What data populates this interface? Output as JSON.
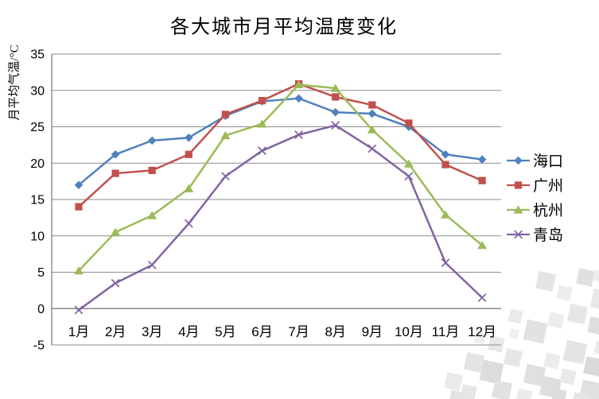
{
  "chart_data": {
    "type": "line",
    "title": "各大城市月平均温度变化",
    "ylabel": "月平均气温/°C",
    "xlabel": "",
    "categories": [
      "1月",
      "2月",
      "3月",
      "4月",
      "5月",
      "6月",
      "7月",
      "8月",
      "9月",
      "10月",
      "11月",
      "12月"
    ],
    "series": [
      {
        "name": "海口",
        "marker": "diamond",
        "color": "#4F81BD",
        "values": [
          17,
          21.2,
          23.1,
          23.5,
          26.5,
          28.5,
          28.9,
          27,
          26.8,
          25,
          21.2,
          20.5
        ]
      },
      {
        "name": "广州",
        "marker": "square",
        "color": "#C0504D",
        "values": [
          14,
          18.6,
          19,
          21.2,
          26.7,
          28.6,
          30.9,
          29.1,
          28,
          25.5,
          19.8,
          17.6
        ]
      },
      {
        "name": "杭州",
        "marker": "triangle",
        "color": "#9BBB59",
        "values": [
          5.2,
          10.5,
          12.8,
          16.5,
          23.8,
          25.4,
          30.8,
          30.3,
          24.6,
          19.9,
          12.9,
          8.7
        ]
      },
      {
        "name": "青岛",
        "marker": "x",
        "color": "#8064A2",
        "values": [
          -0.2,
          3.5,
          6,
          11.7,
          18.2,
          21.7,
          23.9,
          25.2,
          22,
          18.2,
          6.3,
          1.5
        ]
      }
    ],
    "ylim": [
      -5,
      35
    ],
    "yticks": [
      -5,
      0,
      5,
      10,
      15,
      20,
      25,
      30,
      35
    ],
    "grid": true,
    "legend_position": "right"
  },
  "colors": {
    "gridline": "#8E8E8E",
    "axis": "#7F7F7F",
    "text": "#000000",
    "background": "#FFFFFF"
  }
}
